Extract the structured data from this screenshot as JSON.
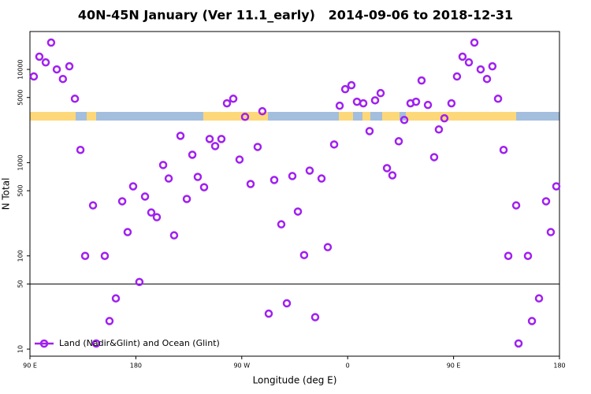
{
  "chart_data": {
    "type": "scatter",
    "title": "40N-45N January (Ver 11.1_early)   2014-09-06 to 2018-12-31",
    "x_label": "Longitude (deg E)",
    "y_label": "N Total",
    "xlim": [
      90,
      540
    ],
    "xticks": [
      {
        "value": 90,
        "label": "90 E"
      },
      180,
      {
        "value": 270,
        "label": "90 W"
      },
      {
        "value": 360,
        "label": "0"
      },
      {
        "value": 450,
        "label": "90 E"
      },
      {
        "value": 540,
        "label": "180"
      }
    ],
    "ylim": [
      8.4,
      25500
    ],
    "yticks": [
      10,
      50,
      100,
      500,
      1000,
      5000,
      10000
    ],
    "log_y": true,
    "hline": 50,
    "legend": "bottom-left",
    "x": [
      93.3,
      98,
      103.4,
      108,
      112.8,
      118,
      123.5,
      128.2,
      132.9,
      136.9,
      143.6,
      146.3,
      153.6,
      157.6,
      163,
      168.4,
      173,
      177.7,
      183,
      187.8,
      193.1,
      197.8,
      203.2,
      207.9,
      212.5,
      217.9,
      223.3,
      228,
      232.6,
      238,
      242.7,
      247.4,
      252.7,
      257.4,
      262.8,
      268.1,
      272.8,
      277.5,
      283.5,
      287.5,
      292.9,
      297.6,
      303.6,
      308.3,
      313,
      317.7,
      323,
      327.7,
      332.4,
      337.8,
      343.1,
      348.5,
      353.2,
      357.9,
      363.2,
      367.9,
      373.3,
      378.6,
      383.3,
      388,
      393.4,
      398,
      403.4,
      408.1,
      413.4,
      418.1,
      422.8,
      428.2,
      433.5,
      437.5,
      442.2,
      448.2,
      452.9,
      457.6,
      463,
      467.7,
      473,
      478.4,
      483,
      487.8,
      492.5,
      496.5,
      503.2,
      505.2,
      513.2,
      516.6,
      522.6,
      528.6,
      532.6,
      537.3
    ],
    "series": [
      {
        "name": "Land (Nadir&Glint) and Ocean (Glint)",
        "color": "#a020f0",
        "values": [
          8400,
          13700,
          11900,
          19400,
          10000,
          7900,
          10800,
          4850,
          1370,
          100,
          348,
          11.5,
          100,
          20,
          35,
          385,
          180,
          557,
          52.5,
          433,
          292,
          260,
          944,
          676,
          166,
          1940,
          408,
          1216,
          703,
          545,
          1795,
          1506,
          1795,
          4330,
          4850,
          1080,
          3100,
          590,
          1475,
          3560,
          24,
          652,
          218,
          31,
          718,
          299,
          102,
          822,
          22,
          676,
          124,
          1567,
          4080,
          6140,
          6770,
          4500,
          4330,
          2180,
          4660,
          5570,
          873,
          731,
          1695,
          2870,
          4330,
          4500,
          7610,
          4160,
          1145,
          2270,
          2990,
          4330,
          8400,
          13700,
          11900,
          19400,
          10000,
          7900,
          10800,
          4850,
          1370,
          100,
          348,
          11.5,
          100,
          20,
          35,
          385,
          180,
          557
        ]
      }
    ]
  }
}
